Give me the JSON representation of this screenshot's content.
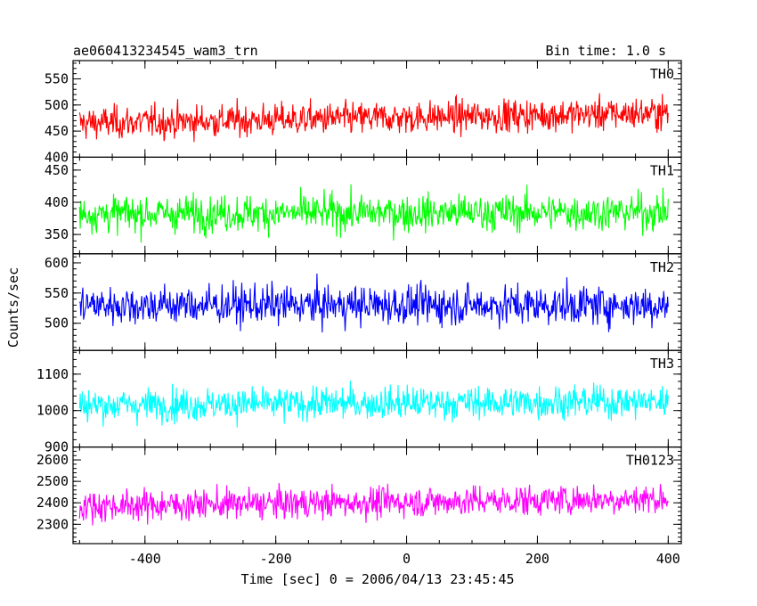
{
  "title_left": "ae060413234545_wam3_trn",
  "title_right": "Bin time: 1.0 s",
  "ylabel": "Counts/sec",
  "xlabel": "Time [sec] 0 = 2006/04/13 23:45:45",
  "chart_data": {
    "type": "line",
    "x_range": [
      -510,
      420
    ],
    "x_ticks": [
      -400,
      -200,
      0,
      200,
      400
    ],
    "x_data_range": [
      -500,
      400
    ],
    "bin_time": 1.0,
    "panels": [
      {
        "name": "TH0",
        "color": "#ff0000",
        "ylim": [
          400,
          585
        ],
        "yticks": [
          400,
          450,
          500,
          550
        ],
        "mean_start": 465,
        "mean_end": 485,
        "spread": 22
      },
      {
        "name": "TH1",
        "color": "#00ff00",
        "ylim": [
          320,
          470
        ],
        "yticks": [
          350,
          400,
          450
        ],
        "mean_start": 382,
        "mean_end": 385,
        "spread": 20
      },
      {
        "name": "TH2",
        "color": "#0000ff",
        "ylim": [
          455,
          615
        ],
        "yticks": [
          500,
          550,
          600
        ],
        "mean_start": 530,
        "mean_end": 530,
        "spread": 23
      },
      {
        "name": "TH3",
        "color": "#00ffff",
        "ylim": [
          900,
          1165
        ],
        "yticks": [
          900,
          1000,
          1100
        ],
        "mean_start": 1015,
        "mean_end": 1025,
        "spread": 32
      },
      {
        "name": "TH0123",
        "color": "#ff00ff",
        "ylim": [
          2210,
          2660
        ],
        "yticks": [
          2300,
          2400,
          2500,
          2600
        ],
        "mean_start": 2385,
        "mean_end": 2420,
        "spread": 50
      }
    ]
  }
}
